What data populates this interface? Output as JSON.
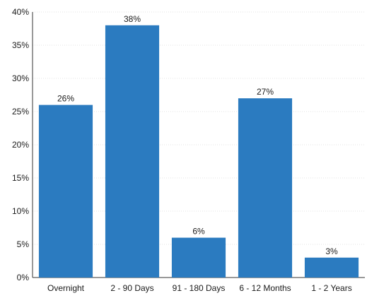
{
  "chart_data": {
    "type": "bar",
    "title": "",
    "xlabel": "",
    "ylabel": "",
    "categories": [
      "Overnight",
      "2 - 90 Days",
      "91 - 180 Days",
      "6 - 12 Months",
      "1 - 2 Years"
    ],
    "values": [
      26,
      38,
      6,
      27,
      3
    ],
    "data_labels": [
      "26%",
      "38%",
      "6%",
      "27%",
      "3%"
    ],
    "ylim": [
      0,
      40
    ],
    "yticks": [
      0,
      5,
      10,
      15,
      20,
      25,
      30,
      35,
      40
    ],
    "ytick_labels": [
      "0%",
      "5%",
      "10%",
      "15%",
      "20%",
      "25%",
      "30%",
      "35%",
      "40%"
    ],
    "grid": "faint horizontal",
    "legend": "none",
    "colors": {
      "bar": "#2b7bc0",
      "grid": "#e3e3e3",
      "axis": "#333333"
    }
  }
}
